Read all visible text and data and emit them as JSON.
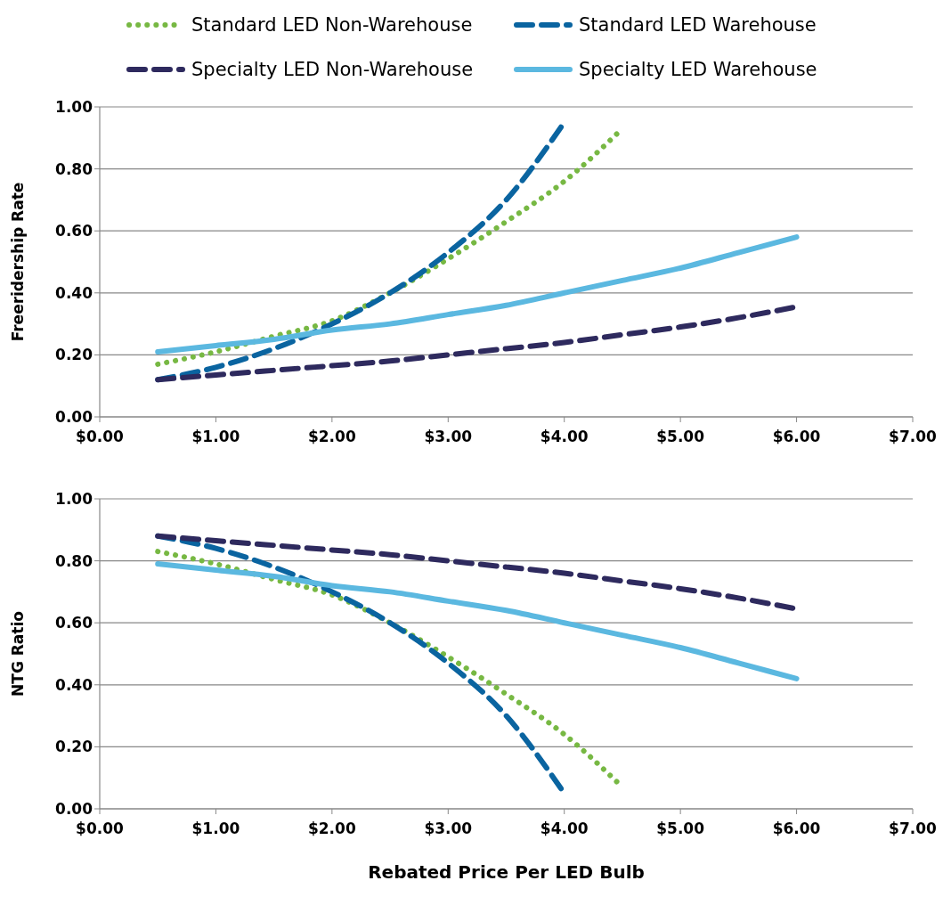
{
  "chart_data": [
    {
      "type": "line",
      "ylabel": "Freeridership Rate",
      "x": [
        0.5,
        1,
        1.5,
        2,
        2.5,
        3,
        3.5,
        4,
        4.5,
        5,
        5.5,
        6
      ],
      "xlim": [
        0,
        7
      ],
      "xticks": [
        {
          "value": 0,
          "label": "$0.00"
        },
        {
          "value": 1,
          "label": "$1.00"
        },
        {
          "value": 2,
          "label": "$2.00"
        },
        {
          "value": 3,
          "label": "$3.00"
        },
        {
          "value": 4,
          "label": "$4.00"
        },
        {
          "value": 5,
          "label": "$5.00"
        },
        {
          "value": 6,
          "label": "$6.00"
        },
        {
          "value": 7,
          "label": "$7.00"
        }
      ],
      "ylim": [
        0,
        1
      ],
      "yticks": [
        {
          "value": 0,
          "label": "0.00"
        },
        {
          "value": 0.2,
          "label": "0.20"
        },
        {
          "value": 0.4,
          "label": "0.40"
        },
        {
          "value": 0.6,
          "label": "0.60"
        },
        {
          "value": 0.8,
          "label": "0.80"
        },
        {
          "value": 1,
          "label": "1.00"
        }
      ],
      "grid": "y",
      "legend": "top",
      "series": [
        {
          "name": "Standard LED Non-Warehouse",
          "color": "#77b843",
          "line_style": "dotted",
          "values": [
            0.17,
            0.21,
            0.26,
            0.31,
            0.4,
            0.51,
            0.63,
            0.76,
            0.93,
            null,
            null,
            null
          ]
        },
        {
          "name": "Standard LED Warehouse",
          "color": "#0a64a0",
          "line_style": "dashed",
          "values": [
            0.12,
            0.16,
            0.22,
            0.3,
            0.4,
            0.53,
            0.7,
            0.95,
            null,
            null,
            null,
            null
          ]
        },
        {
          "name": "Specialty LED Non-Warehouse",
          "color": "#2e2a5e",
          "line_style": "dashed",
          "values": [
            0.12,
            0.135,
            0.15,
            0.165,
            0.18,
            0.2,
            0.22,
            0.24,
            0.265,
            0.29,
            0.32,
            0.355
          ]
        },
        {
          "name": "Specialty LED Warehouse",
          "color": "#5bb8e0",
          "line_style": "solid",
          "values": [
            0.21,
            0.23,
            0.25,
            0.28,
            0.3,
            0.33,
            0.36,
            0.4,
            0.44,
            0.48,
            0.53,
            0.58
          ]
        }
      ]
    },
    {
      "type": "line",
      "ylabel": "NTG Ratio",
      "xlabel": "Rebated Price Per LED Bulb",
      "x": [
        0.5,
        1,
        1.5,
        2,
        2.5,
        3,
        3.5,
        4,
        4.5,
        5,
        5.5,
        6
      ],
      "xlim": [
        0,
        7
      ],
      "xticks": [
        {
          "value": 0,
          "label": "$0.00"
        },
        {
          "value": 1,
          "label": "$1.00"
        },
        {
          "value": 2,
          "label": "$2.00"
        },
        {
          "value": 3,
          "label": "$3.00"
        },
        {
          "value": 4,
          "label": "$4.00"
        },
        {
          "value": 5,
          "label": "$5.00"
        },
        {
          "value": 6,
          "label": "$6.00"
        },
        {
          "value": 7,
          "label": "$7.00"
        }
      ],
      "ylim": [
        0,
        1
      ],
      "yticks": [
        {
          "value": 0,
          "label": "0.00"
        },
        {
          "value": 0.2,
          "label": "0.20"
        },
        {
          "value": 0.4,
          "label": "0.40"
        },
        {
          "value": 0.6,
          "label": "0.60"
        },
        {
          "value": 0.8,
          "label": "0.80"
        },
        {
          "value": 1,
          "label": "1.00"
        }
      ],
      "grid": "y",
      "legend": false,
      "series": [
        {
          "color": "#77b843",
          "line_style": "dotted",
          "values": [
            0.83,
            0.79,
            0.74,
            0.69,
            0.6,
            0.49,
            0.37,
            0.24,
            0.07,
            null,
            null,
            null
          ]
        },
        {
          "color": "#0a64a0",
          "line_style": "dashed",
          "values": [
            0.88,
            0.84,
            0.78,
            0.7,
            0.6,
            0.47,
            0.3,
            0.05,
            null,
            null,
            null,
            null
          ]
        },
        {
          "color": "#2e2a5e",
          "line_style": "dashed",
          "values": [
            0.88,
            0.865,
            0.85,
            0.835,
            0.82,
            0.8,
            0.78,
            0.76,
            0.735,
            0.71,
            0.68,
            0.645
          ]
        },
        {
          "color": "#5bb8e0",
          "line_style": "solid",
          "values": [
            0.79,
            0.77,
            0.75,
            0.72,
            0.7,
            0.67,
            0.64,
            0.6,
            0.56,
            0.52,
            0.47,
            0.42
          ]
        }
      ]
    }
  ]
}
